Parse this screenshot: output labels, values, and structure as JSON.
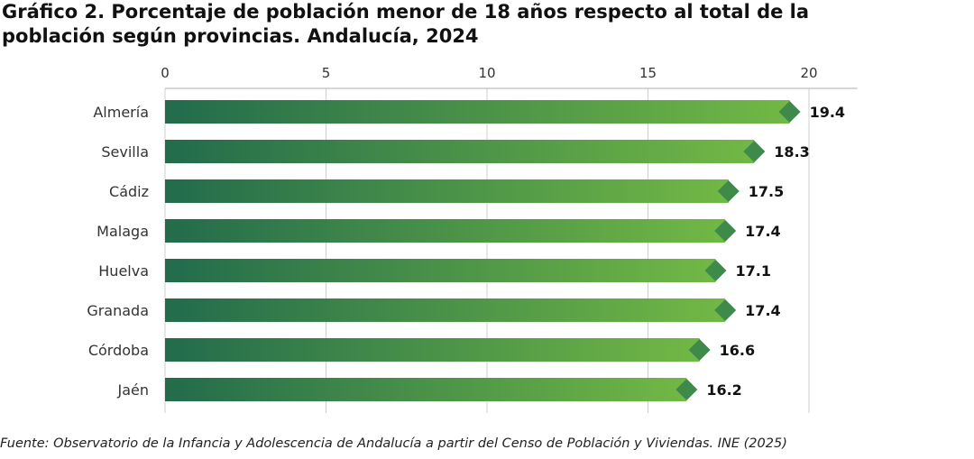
{
  "chart_data": {
    "type": "bar",
    "orientation": "horizontal",
    "title_lines": [
      "Gráfico 2. Porcentaje de población menor de 18 años respecto al total de la",
      "población según provincias. Andalucía, 2024"
    ],
    "categories": [
      "Almería",
      "Sevilla",
      "Cádiz",
      "Malaga",
      "Huelva",
      "Granada",
      "Córdoba",
      "Jaén"
    ],
    "values": [
      19.4,
      18.3,
      17.5,
      17.4,
      17.1,
      17.4,
      16.6,
      16.2
    ],
    "value_labels": [
      "19.4",
      "18.3",
      "17.5",
      "17.4",
      "17.1",
      "17.4",
      "16.6",
      "16.2"
    ],
    "xaxis_ticks": [
      0,
      5,
      10,
      15,
      20
    ],
    "xaxis_position": "top",
    "xlim": [
      0,
      21.5
    ],
    "bar_color_start": "#226b4c",
    "bar_color_end": "#72b845",
    "marker_color": "#3d8a4a",
    "grid": "vertical"
  },
  "source": "Fuente: Observatorio de la Infancia y Adolescencia de Andalucía a partir del Censo de Población y Viviendas. INE (2025)"
}
